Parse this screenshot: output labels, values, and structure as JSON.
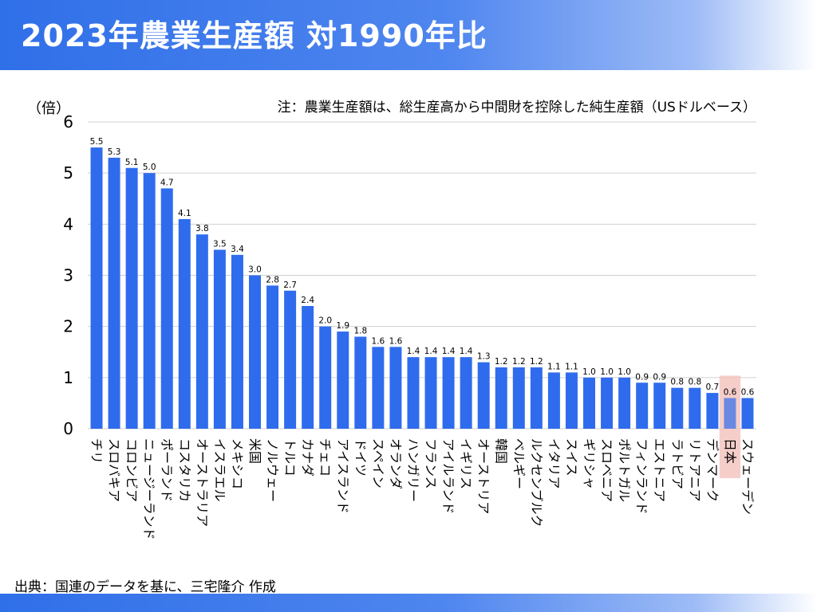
{
  "header": {
    "title": "2023年農業生産額 対1990年比"
  },
  "footer": {
    "source": "出典：国連のデータを基に、三宅隆介 作成"
  },
  "chart_data": {
    "type": "bar",
    "ylabel": "（倍）",
    "note": "注：農業生産額は、総生産高から中間財を控除した純生産額（USドルベース）",
    "ylim": [
      0,
      6
    ],
    "yticks": [
      0,
      1,
      2,
      3,
      4,
      5,
      6
    ],
    "grid": true,
    "categories": [
      "チリ",
      "スロバキア",
      "コロンビア",
      "ニュージーランド",
      "ポーランド",
      "コスタリカ",
      "オーストラリア",
      "イスラエル",
      "メキシコ",
      "米国",
      "ノルウェー",
      "トルコ",
      "カナダ",
      "チェコ",
      "アイスランド",
      "ドイツ",
      "スペイン",
      "オランダ",
      "ハンガリー",
      "フランス",
      "アイルランド",
      "イギリス",
      "オーストリア",
      "韓国",
      "ベルギー",
      "ルクセンブルク",
      "イタリア",
      "スイス",
      "ギリシャ",
      "スロベニア",
      "ポルトガル",
      "フィンランド",
      "エストニア",
      "ラトビア",
      "リトアニア",
      "デンマーク",
      "日本",
      "スウェーデン"
    ],
    "values": [
      5.5,
      5.3,
      5.1,
      5.0,
      4.7,
      4.1,
      3.8,
      3.5,
      3.4,
      3.0,
      2.8,
      2.7,
      2.4,
      2.0,
      1.9,
      1.8,
      1.6,
      1.6,
      1.4,
      1.4,
      1.4,
      1.4,
      1.3,
      1.2,
      1.2,
      1.2,
      1.1,
      1.1,
      1.0,
      1.0,
      1.0,
      0.9,
      0.9,
      0.8,
      0.8,
      0.7,
      0.6,
      0.6
    ],
    "labels": [
      "5.5",
      "5.3",
      "5.1",
      "5.0",
      "4.7",
      "4.1",
      "3.8",
      "3.5",
      "3.4",
      "3.0",
      "2.8",
      "2.7",
      "2.4",
      "2.0",
      "1.9",
      "1.8",
      "1.6",
      "1.6",
      "1.4",
      "1.4",
      "1.4",
      "1.4",
      "1.3",
      "1.2",
      "1.2",
      "1.2",
      "1.1",
      "1.1",
      "1.0",
      "1.0",
      "1.0",
      "0.9",
      "0.9",
      "0.8",
      "0.8",
      "0.7",
      "0.6",
      "0.6"
    ],
    "highlight": "日本",
    "colors": {
      "bar": "#2f6ced",
      "highlight_box": "#f5c6c0",
      "grid": "#d0d0d0"
    }
  }
}
